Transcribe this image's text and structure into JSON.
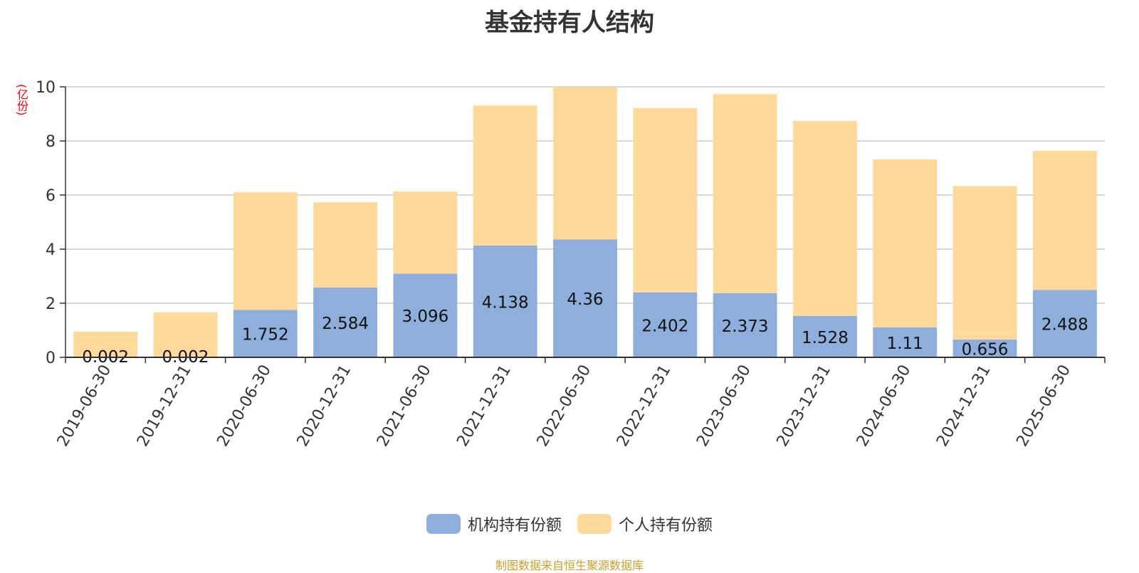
{
  "chart_data": {
    "type": "bar",
    "stacked": true,
    "title": "基金持有人结构",
    "unit_label": "(亿份)",
    "categories": [
      "2019-06-30",
      "2019-12-31",
      "2020-06-30",
      "2020-12-31",
      "2021-06-30",
      "2021-12-31",
      "2022-06-30",
      "2022-12-31",
      "2023-06-30",
      "2023-12-31",
      "2024-06-30",
      "2024-12-31",
      "2025-06-30"
    ],
    "series": [
      {
        "name": "机构持有份额",
        "color": "#8eaedc",
        "values": [
          0.002,
          0.002,
          1.752,
          2.584,
          3.096,
          4.138,
          4.36,
          2.402,
          2.373,
          1.528,
          1.11,
          0.656,
          2.488
        ],
        "labels": [
          "0.002",
          "0.002",
          "1.752",
          "2.584",
          "3.096",
          "4.138",
          "4.36",
          "2.402",
          "2.373",
          "1.528",
          "1.11",
          "0.656",
          "2.488"
        ]
      },
      {
        "name": "个人持有份额",
        "color": "#ffd99a",
        "values": [
          0.948,
          1.658,
          4.348,
          3.146,
          3.034,
          5.172,
          5.64,
          6.818,
          7.357,
          7.212,
          6.21,
          5.674,
          5.142
        ]
      }
    ],
    "ylim": [
      0,
      10
    ],
    "yticks": [
      0,
      2,
      4,
      6,
      8,
      10
    ],
    "grid": true,
    "legend_position": "bottom-center"
  },
  "source_note": "制图数据来自恒生聚源数据库"
}
